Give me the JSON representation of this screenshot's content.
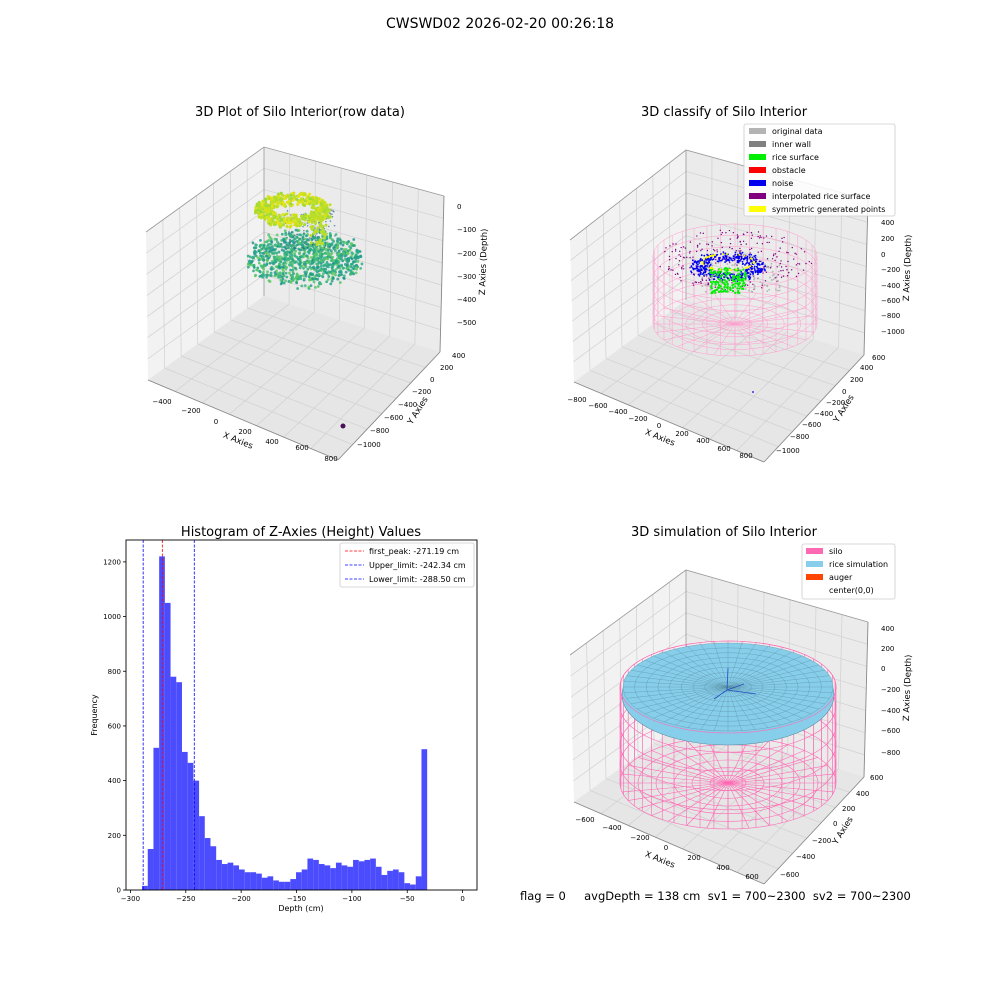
{
  "figure": {
    "suptitle": "CWSWD02 2026-02-20 00:26:18"
  },
  "panel_raw": {
    "title": "3D Plot of Silo Interior(row data)",
    "xlabel": "X Axies",
    "ylabel": "Y Axies",
    "zlabel": "Z Axies (Depth)",
    "x_ticks": [
      "−400",
      "−200",
      "0",
      "200",
      "400",
      "600",
      "800"
    ],
    "y_ticks": [
      "400",
      "200",
      "0",
      "−200",
      "−400",
      "−600",
      "−800",
      "−1000"
    ],
    "z_ticks": [
      "0",
      "−100",
      "−200",
      "−300",
      "−400",
      "−500"
    ]
  },
  "panel_classify": {
    "title": "3D classify of Silo Interior",
    "xlabel": "X Axies",
    "ylabel": "Y Axies",
    "zlabel": "Z Axies (Depth)",
    "x_ticks": [
      "−800",
      "−600",
      "−400",
      "−200",
      "0",
      "200",
      "400",
      "600",
      "800"
    ],
    "y_ticks": [
      "600",
      "400",
      "200",
      "0",
      "−200",
      "−400",
      "−600",
      "−800",
      "−1000"
    ],
    "z_ticks": [
      "400",
      "200",
      "0",
      "−200",
      "−400",
      "−600",
      "−800",
      "−1000"
    ],
    "legend": [
      {
        "label": "original data",
        "color": "#b4b4b4"
      },
      {
        "label": "inner wall",
        "color": "#808080"
      },
      {
        "label": "rice surface",
        "color": "#00ee00"
      },
      {
        "label": "obstacle",
        "color": "#ff0000"
      },
      {
        "label": "noise",
        "color": "#0000ee"
      },
      {
        "label": "interpolated rice surface",
        "color": "#800080"
      },
      {
        "label": "symmetric generated points",
        "color": "#ffff00"
      }
    ]
  },
  "panel_sim": {
    "title": "3D simulation of Silo Interior",
    "xlabel": "X Axies",
    "ylabel": "Y Axies",
    "zlabel": "Z Axies (Depth)",
    "x_ticks": [
      "−600",
      "−400",
      "−200",
      "0",
      "200",
      "400",
      "600"
    ],
    "y_ticks": [
      "600",
      "400",
      "200",
      "0",
      "−200",
      "−400",
      "−600"
    ],
    "z_ticks": [
      "400",
      "200",
      "0",
      "−200",
      "−400",
      "−600",
      "−800"
    ],
    "legend": [
      {
        "label": "silo",
        "color": "#ff69b4"
      },
      {
        "label": "rice simulation",
        "color": "#87ceeb"
      },
      {
        "label": "auger",
        "color": "#ff4500"
      },
      {
        "label": "center(0,0)",
        "color": ""
      }
    ]
  },
  "status": {
    "line": "flag = 0     avgDepth = 138 cm  sv1 = 700~2300  sv2 = 700~2300"
  },
  "colors": {
    "histogram_bar": "#4c4cff",
    "silo_wire": "#ff69b4",
    "rice": "#87ceeb",
    "first_peak_line": "#ff0000",
    "limit_lines": "#0000ff"
  },
  "chart_data": {
    "type": "bar",
    "title": "Histogram of Z-Axies (Height) Values",
    "xlabel": "Depth (cm)",
    "ylabel": "Frequency",
    "xlim": [
      -304,
      13
    ],
    "ylim": [
      0,
      1280
    ],
    "x_ticks": [
      -300,
      -250,
      -200,
      -150,
      -100,
      -50,
      0
    ],
    "y_ticks": [
      0,
      200,
      400,
      600,
      800,
      1000,
      1200
    ],
    "x_tick_labels": [
      "−300",
      "−250",
      "−200",
      "−150",
      "−100",
      "−50",
      "0"
    ],
    "y_tick_labels": [
      "0",
      "200",
      "400",
      "600",
      "800",
      "1000",
      "1200"
    ],
    "bin_start": -289.5,
    "bin_width": 5.15,
    "values": [
      15,
      150,
      520,
      1220,
      1050,
      780,
      760,
      505,
      465,
      400,
      270,
      190,
      160,
      110,
      95,
      100,
      90,
      75,
      65,
      65,
      60,
      45,
      50,
      35,
      30,
      30,
      40,
      65,
      75,
      115,
      110,
      95,
      90,
      80,
      100,
      90,
      85,
      110,
      105,
      110,
      115,
      85,
      55,
      70,
      75,
      65,
      25,
      20,
      50,
      515
    ],
    "reference_lines": [
      {
        "label": "first_peak: -271.19 cm",
        "x": -271.19,
        "color": "#ff0000"
      },
      {
        "label": "Upper_limit: -242.34 cm",
        "x": -242.34,
        "color": "#0000ff"
      },
      {
        "label": "Lower_limit: -288.50 cm",
        "x": -288.5,
        "color": "#0000ff"
      }
    ],
    "legend_position": "upper right",
    "grid": false
  }
}
